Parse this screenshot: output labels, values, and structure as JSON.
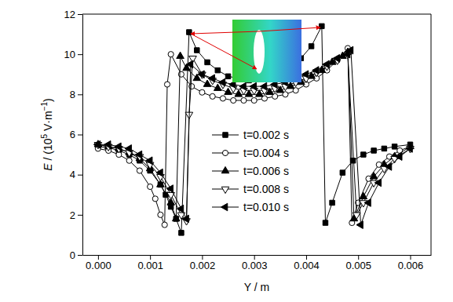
{
  "chart_data": {
    "type": "line",
    "x_label": "Y / m",
    "y_label_parts": [
      "E",
      " / (10",
      "5",
      " V·m",
      "−1",
      ")"
    ],
    "xlim": [
      -0.0003,
      0.0064
    ],
    "ylim": [
      0,
      12
    ],
    "xticks": [
      {
        "value": 0,
        "label": "0.000"
      },
      0.001,
      0.002,
      0.003,
      0.004,
      0.005,
      0.006
    ],
    "yticks": [
      0,
      2,
      4,
      6,
      8,
      10,
      12
    ],
    "legend": "center",
    "series": [
      {
        "name": "t=0.002 s",
        "color": "#000000",
        "marker": "square",
        "x": [
          0,
          0.0002,
          0.0004,
          0.0006,
          0.0008,
          0.001,
          0.0012,
          0.0013,
          0.0014,
          0.0015,
          0.0016,
          0.00175,
          0.0019,
          0.0021,
          0.0023,
          0.0025,
          0.0027,
          0.0029,
          0.0031,
          0.0033,
          0.0035,
          0.0037,
          0.0039,
          0.0041,
          0.0043,
          0.00437,
          0.0045,
          0.0047,
          0.0049,
          0.0051,
          0.0053,
          0.0055,
          0.0057,
          0.006
        ],
        "values": [
          5.4,
          5.35,
          5.2,
          5.0,
          4.7,
          4.2,
          3.5,
          3.0,
          2.4,
          1.8,
          1.1,
          11.1,
          10.2,
          9.6,
          9.2,
          8.9,
          8.8,
          8.7,
          8.8,
          8.9,
          9.1,
          9.4,
          9.8,
          10.4,
          11.4,
          1.6,
          2.6,
          4.1,
          4.7,
          5.0,
          5.2,
          5.3,
          5.4,
          5.5
        ]
      },
      {
        "name": "t=0.004 s",
        "color": "#000000",
        "marker": "circle-open",
        "x": [
          0,
          0.0002,
          0.0004,
          0.0006,
          0.0008,
          0.001,
          0.0011,
          0.0012,
          0.00128,
          0.00133,
          0.0014,
          0.0016,
          0.0018,
          0.002,
          0.0022,
          0.0024,
          0.0026,
          0.0028,
          0.003,
          0.0032,
          0.0034,
          0.0036,
          0.0038,
          0.004,
          0.0042,
          0.0044,
          0.0046,
          0.0048,
          0.00488,
          0.005,
          0.0052,
          0.0054,
          0.0056,
          0.0058,
          0.006
        ],
        "values": [
          5.3,
          5.2,
          5.0,
          4.7,
          4.2,
          3.4,
          2.8,
          2.0,
          1.5,
          8.5,
          10.0,
          9.0,
          8.4,
          8.1,
          7.9,
          7.8,
          7.7,
          7.7,
          7.7,
          7.8,
          7.9,
          8.0,
          8.2,
          8.5,
          8.8,
          9.2,
          9.7,
          10.3,
          1.6,
          2.6,
          3.8,
          4.5,
          4.9,
          5.2,
          5.4
        ]
      },
      {
        "name": "t=0.006 s",
        "color": "#000000",
        "marker": "triangle",
        "x": [
          0,
          0.0002,
          0.0004,
          0.0006,
          0.0008,
          0.001,
          0.0012,
          0.0014,
          0.0015,
          0.00158,
          0.0017,
          0.0019,
          0.0021,
          0.0023,
          0.0025,
          0.0027,
          0.0029,
          0.0031,
          0.0033,
          0.0035,
          0.0037,
          0.0039,
          0.0041,
          0.0043,
          0.0045,
          0.0047,
          0.0048,
          0.00492,
          0.0051,
          0.0053,
          0.0055,
          0.0057,
          0.006
        ],
        "values": [
          5.5,
          5.4,
          5.3,
          5.1,
          4.8,
          4.3,
          3.5,
          2.6,
          1.8,
          9.9,
          9.3,
          8.8,
          8.5,
          8.3,
          8.1,
          8.0,
          8.0,
          8.0,
          8.1,
          8.2,
          8.4,
          8.6,
          8.9,
          9.2,
          9.6,
          9.9,
          10.1,
          1.8,
          2.9,
          3.9,
          4.5,
          4.9,
          5.4
        ]
      },
      {
        "name": "t=0.008 s",
        "color": "#000000",
        "marker": "triangle-down-open",
        "x": [
          0,
          0.0002,
          0.0004,
          0.0006,
          0.0008,
          0.001,
          0.0012,
          0.0014,
          0.0016,
          0.0017,
          0.00175,
          0.00182,
          0.002,
          0.0022,
          0.0024,
          0.0026,
          0.0028,
          0.003,
          0.0032,
          0.0034,
          0.0036,
          0.0038,
          0.004,
          0.0042,
          0.0044,
          0.0046,
          0.0048,
          0.00497,
          0.0051,
          0.0053,
          0.0055,
          0.0057,
          0.006
        ],
        "values": [
          5.5,
          5.4,
          5.3,
          5.1,
          4.9,
          4.5,
          3.9,
          3.0,
          2.0,
          1.7,
          7.0,
          9.8,
          9.0,
          8.7,
          8.5,
          8.3,
          8.2,
          8.2,
          8.2,
          8.3,
          8.4,
          8.6,
          8.8,
          9.1,
          9.4,
          9.7,
          10.0,
          2.0,
          2.6,
          3.6,
          4.3,
          4.8,
          5.3
        ]
      },
      {
        "name": "t=0.010 s",
        "color": "#000000",
        "marker": "triangle-left",
        "x": [
          0,
          0.0002,
          0.0004,
          0.0006,
          0.0008,
          0.001,
          0.0012,
          0.0014,
          0.0016,
          0.0017,
          0.00178,
          0.002,
          0.0022,
          0.0024,
          0.0026,
          0.0028,
          0.003,
          0.0032,
          0.0034,
          0.0036,
          0.0038,
          0.004,
          0.0042,
          0.0044,
          0.0046,
          0.0048,
          0.00486,
          0.00505,
          0.0052,
          0.0054,
          0.0056,
          0.0058,
          0.006
        ],
        "values": [
          5.5,
          5.5,
          5.4,
          5.3,
          5.0,
          4.7,
          4.1,
          3.3,
          2.3,
          1.8,
          9.5,
          9.0,
          8.8,
          8.6,
          8.5,
          8.4,
          8.4,
          8.4,
          8.5,
          8.6,
          8.8,
          9.0,
          9.2,
          9.5,
          9.8,
          10.0,
          10.2,
          1.5,
          2.6,
          3.6,
          4.4,
          4.9,
          5.3
        ]
      }
    ]
  }
}
